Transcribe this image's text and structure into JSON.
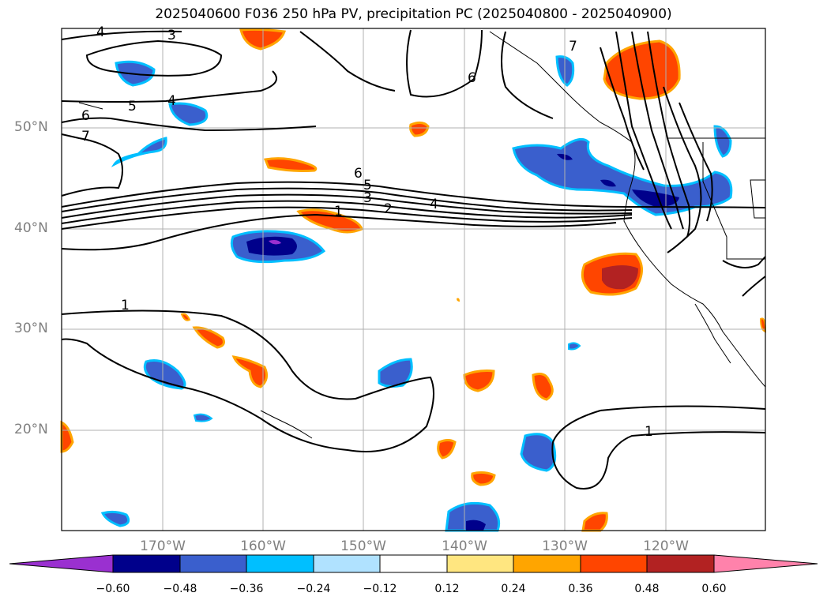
{
  "title": "2025040600 F036 250 hPa PV, precipitation PC (2025040800 - 2025040900)",
  "map": {
    "lat_labels": [
      "50°N",
      "40°N",
      "30°N",
      "20°N"
    ],
    "lon_labels": [
      "170°W",
      "160°W",
      "150°W",
      "140°W",
      "130°W",
      "120°W"
    ],
    "contour_labels": [
      "4",
      "3",
      "5",
      "6",
      "7",
      "4",
      "6",
      "5",
      "3",
      "1",
      "2",
      "4",
      "1",
      "1",
      "6",
      "7"
    ]
  },
  "colorbar": {
    "ticks": [
      "−0.60",
      "−0.48",
      "−0.36",
      "−0.24",
      "−0.12",
      "0.12",
      "0.24",
      "0.36",
      "0.48",
      "0.60"
    ],
    "colors": [
      "#9a30d0",
      "#00008b",
      "#3a5fcd",
      "#00bfff",
      "#b0e2ff",
      "#ffffff",
      "#ffe680",
      "#ffa500",
      "#ff4500",
      "#b22222",
      "#ff82ab"
    ]
  }
}
